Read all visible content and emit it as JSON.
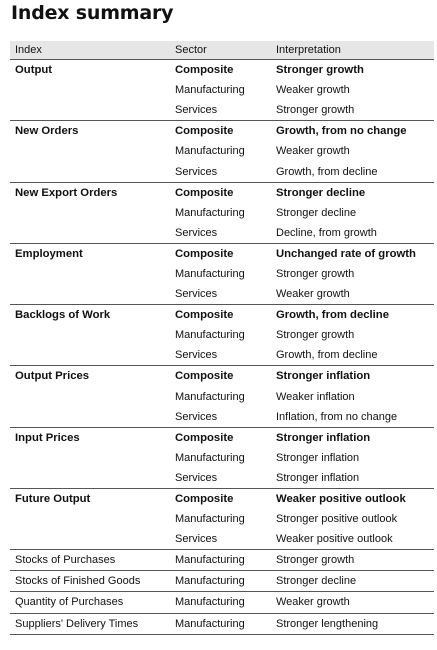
{
  "title": "Index summary",
  "columns": [
    "Index",
    "Sector",
    "Interpretation"
  ],
  "groups": [
    {
      "index": "Output",
      "rows": [
        {
          "sector": "Composite",
          "interpretation": "Stronger growth"
        },
        {
          "sector": "Manufacturing",
          "interpretation": "Weaker growth"
        },
        {
          "sector": "Services",
          "interpretation": "Stronger growth"
        }
      ]
    },
    {
      "index": "New Orders",
      "rows": [
        {
          "sector": "Composite",
          "interpretation": "Growth, from no change"
        },
        {
          "sector": "Manufacturing",
          "interpretation": "Weaker growth"
        },
        {
          "sector": "Services",
          "interpretation": "Growth, from decline"
        }
      ]
    },
    {
      "index": "New Export Orders",
      "rows": [
        {
          "sector": "Composite",
          "interpretation": "Stronger decline"
        },
        {
          "sector": "Manufacturing",
          "interpretation": "Stronger decline"
        },
        {
          "sector": "Services",
          "interpretation": "Decline, from growth"
        }
      ]
    },
    {
      "index": "Employment",
      "rows": [
        {
          "sector": "Composite",
          "interpretation": "Unchanged rate of growth"
        },
        {
          "sector": "Manufacturing",
          "interpretation": "Stronger growth"
        },
        {
          "sector": "Services",
          "interpretation": "Weaker growth"
        }
      ]
    },
    {
      "index": "Backlogs of Work",
      "rows": [
        {
          "sector": "Composite",
          "interpretation": "Growth, from decline"
        },
        {
          "sector": "Manufacturing",
          "interpretation": "Stronger growth"
        },
        {
          "sector": "Services",
          "interpretation": "Growth, from decline"
        }
      ]
    },
    {
      "index": "Output Prices",
      "rows": [
        {
          "sector": "Composite",
          "interpretation": "Stronger inflation"
        },
        {
          "sector": "Manufacturing",
          "interpretation": "Weaker inflation"
        },
        {
          "sector": "Services",
          "interpretation": "Inflation, from no change"
        }
      ]
    },
    {
      "index": "Input Prices",
      "rows": [
        {
          "sector": "Composite",
          "interpretation": "Stronger inflation"
        },
        {
          "sector": "Manufacturing",
          "interpretation": "Stronger inflation"
        },
        {
          "sector": "Services",
          "interpretation": "Stronger inflation"
        }
      ]
    },
    {
      "index": "Future Output",
      "rows": [
        {
          "sector": "Composite",
          "interpretation": "Weaker positive outlook"
        },
        {
          "sector": "Manufacturing",
          "interpretation": "Stronger positive outlook"
        },
        {
          "sector": "Services",
          "interpretation": "Weaker positive outlook"
        }
      ]
    },
    {
      "index": "Stocks of Purchases",
      "rows": [
        {
          "sector": "Manufacturing",
          "interpretation": "Stronger growth"
        }
      ]
    },
    {
      "index": "Stocks of Finished Goods",
      "rows": [
        {
          "sector": "Manufacturing",
          "interpretation": "Stronger decline"
        }
      ]
    },
    {
      "index": "Quantity of Purchases",
      "rows": [
        {
          "sector": "Manufacturing",
          "interpretation": "Weaker growth"
        }
      ]
    },
    {
      "index": "Suppliers' Delivery Times",
      "rows": [
        {
          "sector": "Manufacturing",
          "interpretation": "Stronger lengthening"
        }
      ]
    }
  ]
}
